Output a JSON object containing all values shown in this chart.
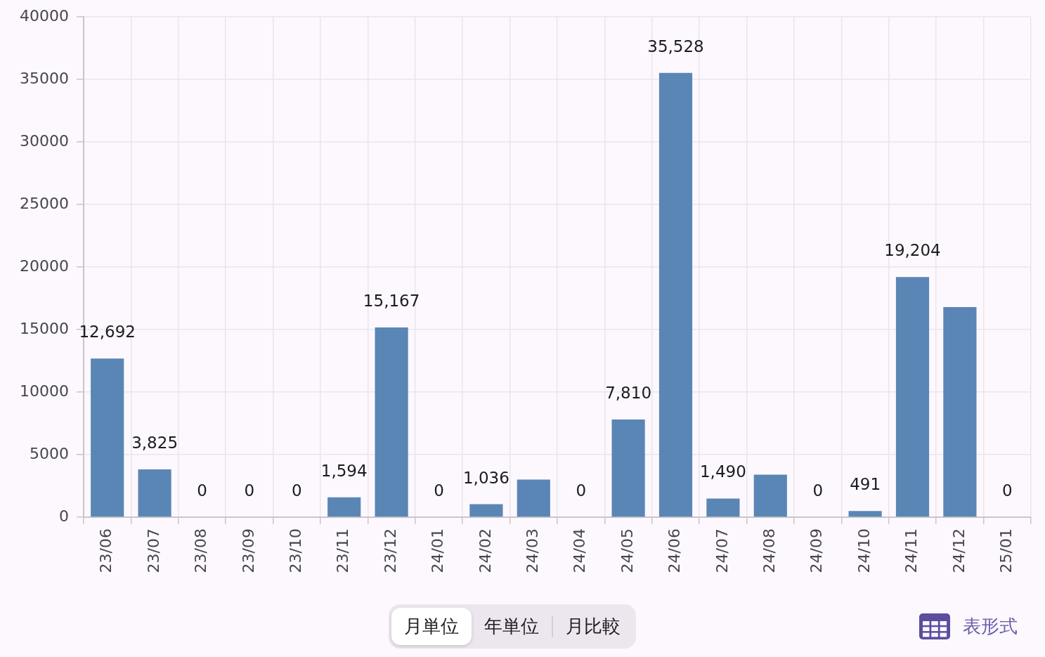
{
  "chart_data": {
    "type": "bar",
    "categories": [
      "23/06",
      "23/07",
      "23/08",
      "23/09",
      "23/10",
      "23/11",
      "23/12",
      "24/01",
      "24/02",
      "24/03",
      "24/04",
      "24/05",
      "24/06",
      "24/07",
      "24/08",
      "24/09",
      "24/10",
      "24/11",
      "24/12",
      "25/01"
    ],
    "values": [
      12692,
      3825,
      0,
      0,
      0,
      1594,
      15167,
      0,
      1036,
      3000,
      0,
      7810,
      35528,
      1490,
      3400,
      0,
      491,
      19204,
      16800,
      0
    ],
    "value_labels": [
      "12,692",
      "3,825",
      "0",
      "0",
      "0",
      "1,594",
      "15,167",
      "0",
      "1,036",
      null,
      "0",
      "7,810",
      "35,528",
      "1,490",
      null,
      "0",
      "491",
      "19,204",
      null,
      "0"
    ],
    "color": "#5a86b6",
    "ylim": [
      0,
      40000
    ],
    "yticks": [
      0,
      5000,
      10000,
      15000,
      20000,
      25000,
      30000,
      35000,
      40000
    ],
    "grid": true,
    "annotations": [
      "月単位",
      "年単位",
      "月比較",
      "表形式"
    ]
  }
}
